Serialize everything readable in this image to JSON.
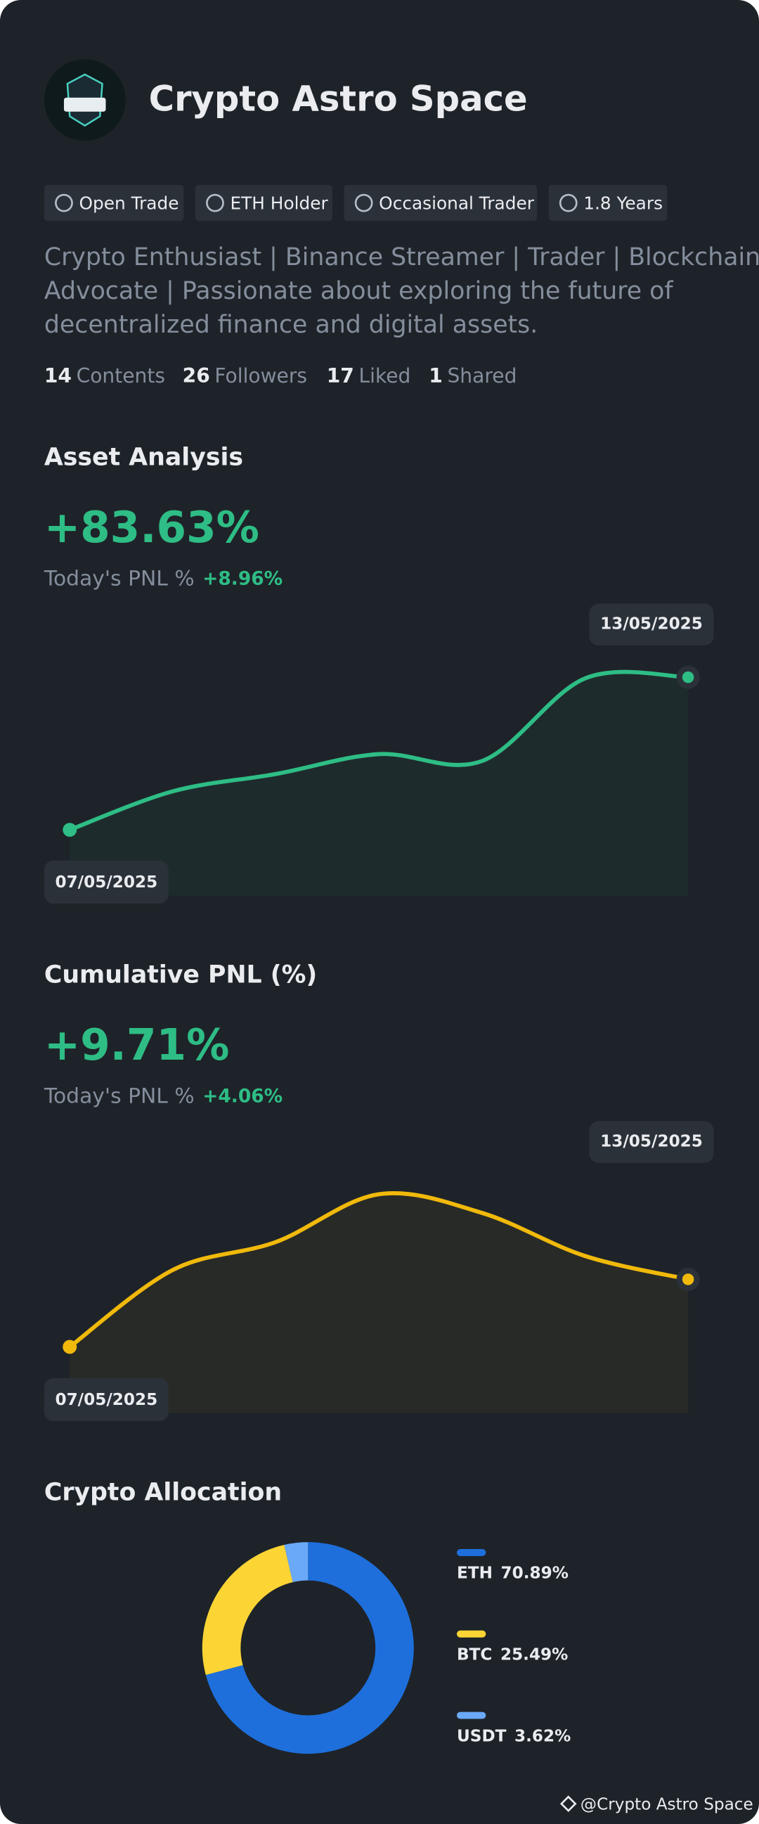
{
  "profile": {
    "name": "Crypto Astro Space",
    "tags": [
      "Open Trade",
      "ETH Holder",
      "Occasional Trader",
      "1.8 Years"
    ],
    "bio_lines": [
      "Crypto Enthusiast | Binance Streamer | Trader | Blockchain",
      "Advocate | Passionate about exploring the future of",
      "decentralized finance and digital assets."
    ],
    "stats": [
      {
        "count": "14",
        "label": "Contents"
      },
      {
        "count": "26",
        "label": "Followers"
      },
      {
        "count": "17",
        "label": "Liked"
      },
      {
        "count": "1",
        "label": "Shared"
      }
    ]
  },
  "chart_data": [
    {
      "type": "line",
      "title": "Asset Analysis",
      "headline": "+83.63%",
      "pnl_label": "Today's PNL %",
      "pnl_value": "+8.96%",
      "categories": [
        "07/05/2025",
        null,
        null,
        null,
        null,
        null,
        "13/05/2025"
      ],
      "values": [
        0,
        21.1,
        30.6,
        41.5,
        37.7,
        83.0,
        83.63
      ],
      "color": "#2ebd85",
      "ylim": [
        -36,
        117
      ]
    },
    {
      "type": "line",
      "title": "Cumulative PNL (%)",
      "headline": "+9.71%",
      "pnl_label": "Today's PNL %",
      "pnl_value": "+4.06%",
      "categories": [
        "07/05/2025",
        null,
        null,
        null,
        null,
        null,
        "13/05/2025"
      ],
      "values": [
        0,
        11.05,
        15.07,
        21.93,
        19.25,
        13.06,
        9.71
      ],
      "color": "#f0b90b",
      "ylim": [
        -9.5,
        30.6
      ]
    },
    {
      "type": "pie",
      "title": "Crypto Allocation",
      "categories": [
        "ETH",
        "BTC",
        "USDT"
      ],
      "values": [
        70.89,
        25.49,
        3.62
      ],
      "value_labels": [
        "70.89%",
        "25.49%",
        "3.62%"
      ],
      "colors": [
        "#1e6fdb",
        "#fcd535",
        "#6aa9f7"
      ]
    }
  ],
  "watermark": "@Crypto Astro Space"
}
